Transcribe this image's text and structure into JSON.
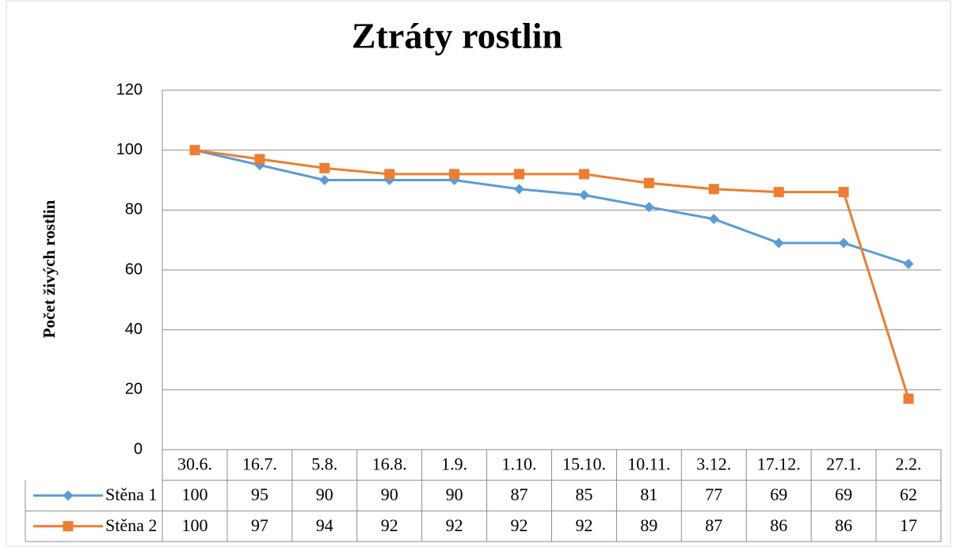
{
  "chart_data": {
    "type": "line",
    "title": "Ztráty rostlin",
    "y_label": "Počet živých rostlin",
    "categories": [
      "30.6.",
      "16.7.",
      "5.8.",
      "16.8.",
      "1.9.",
      "1.10.",
      "15.10.",
      "10.11.",
      "3.12.",
      "17.12.",
      "27.1.",
      "2.2."
    ],
    "series": [
      {
        "name": "Stěna 1",
        "color": "#5b9bd5",
        "marker": "diamond",
        "values": [
          100,
          95,
          90,
          90,
          90,
          87,
          85,
          81,
          77,
          69,
          69,
          62
        ]
      },
      {
        "name": "Stěna 2",
        "color": "#ed7d31",
        "marker": "square",
        "values": [
          100,
          97,
          94,
          92,
          92,
          92,
          92,
          89,
          87,
          86,
          86,
          17
        ]
      }
    ],
    "ylim": [
      0,
      120
    ],
    "yticks": [
      0,
      20,
      40,
      60,
      80,
      100,
      120
    ],
    "grid": true,
    "data_table": true
  }
}
